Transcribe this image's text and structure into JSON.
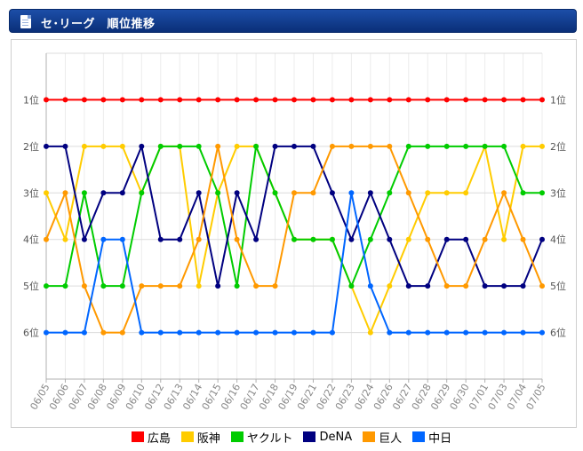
{
  "header": {
    "title": "セ･リーグ　順位推移",
    "icon": "document-icon"
  },
  "chart_data": {
    "type": "line",
    "title": "セ･リーグ　順位推移",
    "categories": [
      "06/05",
      "06/06",
      "06/07",
      "06/08",
      "06/09",
      "06/10",
      "06/12",
      "06/13",
      "06/14",
      "06/15",
      "06/16",
      "06/17",
      "06/18",
      "06/19",
      "06/21",
      "06/22",
      "06/23",
      "06/24",
      "06/26",
      "06/27",
      "06/28",
      "06/29",
      "06/30",
      "07/01",
      "07/03",
      "07/04",
      "07/05"
    ],
    "y_ticks": [
      {
        "value": 1,
        "label": "1位"
      },
      {
        "value": 2,
        "label": "2位"
      },
      {
        "value": 3,
        "label": "3位"
      },
      {
        "value": 4,
        "label": "4位"
      },
      {
        "value": 5,
        "label": "5位"
      },
      {
        "value": 6,
        "label": "6位"
      }
    ],
    "ylim": [
      0,
      7
    ],
    "y_inverted": true,
    "grid": true,
    "legend_position": "bottom",
    "series": [
      {
        "name": "広島",
        "color": "#ff0000",
        "values": [
          1,
          1,
          1,
          1,
          1,
          1,
          1,
          1,
          1,
          1,
          1,
          1,
          1,
          1,
          1,
          1,
          1,
          1,
          1,
          1,
          1,
          1,
          1,
          1,
          1,
          1,
          1
        ]
      },
      {
        "name": "阪神",
        "color": "#ffcc00",
        "values": [
          3,
          4,
          2,
          2,
          2,
          3,
          2,
          2,
          5,
          3,
          2,
          2,
          3,
          4,
          4,
          4,
          5,
          6,
          5,
          4,
          3,
          3,
          3,
          2,
          4,
          2,
          2
        ]
      },
      {
        "name": "ヤクルト",
        "color": "#00cc00",
        "values": [
          5,
          5,
          3,
          5,
          5,
          3,
          2,
          2,
          2,
          3,
          5,
          2,
          3,
          4,
          4,
          4,
          5,
          4,
          3,
          2,
          2,
          2,
          2,
          2,
          2,
          3,
          3
        ]
      },
      {
        "name": "DeNA",
        "color": "#000080",
        "values": [
          2,
          2,
          4,
          3,
          3,
          2,
          4,
          4,
          3,
          5,
          3,
          4,
          2,
          2,
          2,
          3,
          4,
          3,
          4,
          5,
          5,
          4,
          4,
          5,
          5,
          5,
          4
        ]
      },
      {
        "name": "巨人",
        "color": "#ff9900",
        "values": [
          4,
          3,
          5,
          6,
          6,
          5,
          5,
          5,
          4,
          2,
          4,
          5,
          5,
          3,
          3,
          2,
          2,
          2,
          2,
          3,
          4,
          5,
          5,
          4,
          3,
          4,
          5
        ]
      },
      {
        "name": "中日",
        "color": "#0066ff",
        "values": [
          6,
          6,
          6,
          4,
          4,
          6,
          6,
          6,
          6,
          6,
          6,
          6,
          6,
          6,
          6,
          6,
          3,
          5,
          6,
          6,
          6,
          6,
          6,
          6,
          6,
          6,
          6
        ]
      }
    ]
  }
}
